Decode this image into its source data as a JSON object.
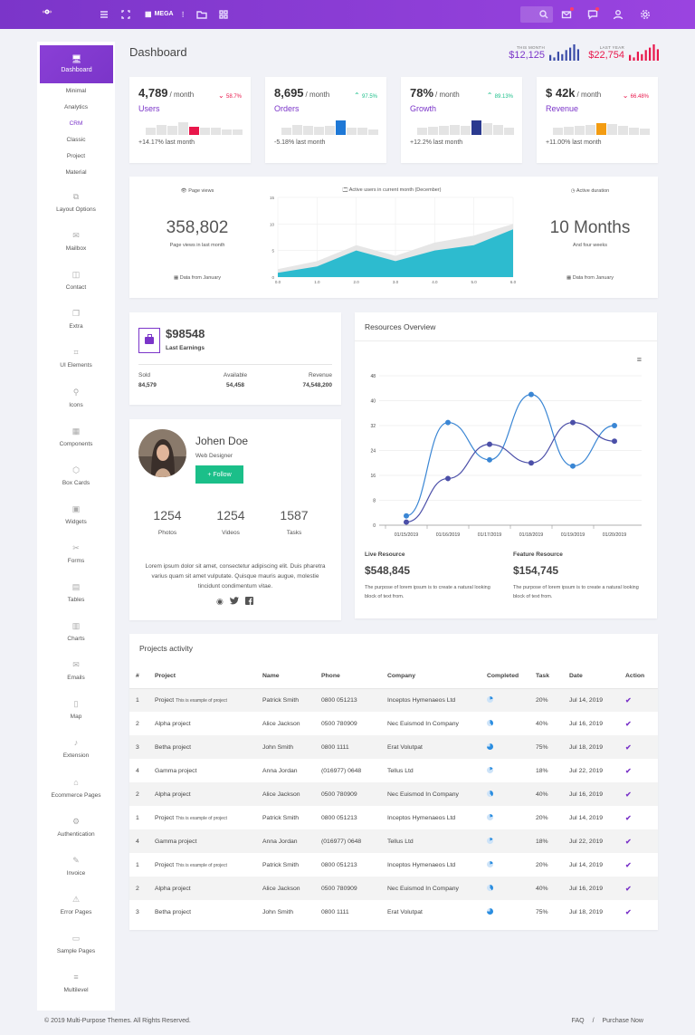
{
  "topbar": {
    "mega_label": "MEGA",
    "icons": [
      "menu-icon",
      "expand-icon",
      "grid-icon",
      "folder-icon",
      "apps-icon",
      "search-icon",
      "mail-icon",
      "chat-icon",
      "user-icon",
      "gear-icon"
    ]
  },
  "sidebar": {
    "active": {
      "label": "Dashboard",
      "icon": "monitor-icon"
    },
    "submenu": [
      "Minimal",
      "Analytics",
      "CRM",
      "Classic",
      "Project",
      "Material"
    ],
    "items": [
      {
        "label": "Layout Options",
        "icon": "layout-icon"
      },
      {
        "label": "Mailbox",
        "icon": "mailbox-icon"
      },
      {
        "label": "Contact",
        "icon": "contact-icon"
      },
      {
        "label": "Extra",
        "icon": "copy-icon"
      },
      {
        "label": "UI Elements",
        "icon": "crop-icon"
      },
      {
        "label": "Icons",
        "icon": "pin-icon"
      },
      {
        "label": "Components",
        "icon": "components-icon"
      },
      {
        "label": "Box Cards",
        "icon": "box-icon"
      },
      {
        "label": "Widgets",
        "icon": "image-icon"
      },
      {
        "label": "Forms",
        "icon": "tools-icon"
      },
      {
        "label": "Tables",
        "icon": "table-icon"
      },
      {
        "label": "Charts",
        "icon": "chart-icon"
      },
      {
        "label": "Emails",
        "icon": "envelope-icon"
      },
      {
        "label": "Map",
        "icon": "map-icon"
      },
      {
        "label": "Extension",
        "icon": "plug-icon"
      },
      {
        "label": "Ecommerce Pages",
        "icon": "basket-icon"
      },
      {
        "label": "Authentication",
        "icon": "gear-small-icon"
      },
      {
        "label": "Invoice",
        "icon": "pen-icon"
      },
      {
        "label": "Error Pages",
        "icon": "warning-icon"
      },
      {
        "label": "Sample Pages",
        "icon": "laptop-icon"
      },
      {
        "label": "Multilevel",
        "icon": "list-icon"
      }
    ]
  },
  "header": {
    "title": "Dashboard",
    "this_month": {
      "label": "THIS MONTH",
      "value": "$12,125"
    },
    "last_year": {
      "label": "LAST YEAR",
      "value": "$22,754"
    }
  },
  "stats": [
    {
      "value": "4,789",
      "unit": "/ month",
      "pct": "58.7%",
      "dir": "down",
      "name": "Users",
      "footer": "+14.17% last month",
      "accent": "#e8174b",
      "bars": [
        0.5,
        0.7,
        0.6,
        0.9,
        0.55,
        0.5,
        0.5,
        0.4,
        0.4
      ],
      "hi": 4
    },
    {
      "value": "8,695",
      "unit": "/ month",
      "pct": "97.5%",
      "dir": "up",
      "name": "Orders",
      "footer": "-5.18% last month",
      "accent": "#1e78d6",
      "bars": [
        0.5,
        0.7,
        0.6,
        0.55,
        0.6,
        1.0,
        0.5,
        0.5,
        0.4
      ],
      "hi": 5
    },
    {
      "value": "78%",
      "unit": "/ month",
      "pct": "89.13%",
      "dir": "up",
      "name": "Growth",
      "footer": "+12.2% last month",
      "accent": "#2b3a8f",
      "bars": [
        0.5,
        0.55,
        0.6,
        0.7,
        0.6,
        1.0,
        0.8,
        0.7,
        0.5
      ],
      "hi": 5
    },
    {
      "value": "$ 42k",
      "unit": "/ month",
      "pct": "66.48%",
      "dir": "down",
      "name": "Revenue",
      "footer": "+11.00% last month",
      "accent": "#f39c12",
      "bars": [
        0.5,
        0.55,
        0.6,
        0.7,
        0.8,
        0.75,
        0.6,
        0.5,
        0.45
      ],
      "hi": 4
    }
  ],
  "visits": {
    "left_caption": "Page views",
    "left_value": "358,802",
    "left_sub": "Page views in last month",
    "left_foot": "Data from January",
    "center_caption": "Active users in current month (December)",
    "right_caption": "Active duration",
    "right_value": "10 Months",
    "right_sub": "And four weeks",
    "right_foot": "Data from January"
  },
  "earnings": {
    "amount": "$98548",
    "label": "Last Earnings",
    "cols": [
      {
        "k": "Sold",
        "v": "84,579"
      },
      {
        "k": "Available",
        "v": "54,458"
      },
      {
        "k": "Revenue",
        "v": "74,548,200"
      }
    ]
  },
  "profile": {
    "name": "Johen Doe",
    "role": "Web Designer",
    "follow": "+ Follow",
    "stats": [
      {
        "v": "1254",
        "k": "Photos"
      },
      {
        "v": "1254",
        "k": "Videos"
      },
      {
        "v": "1587",
        "k": "Tasks"
      }
    ],
    "bio": "Lorem ipsum dolor sit amet, consectetur adipiscing elit. Duis pharetra varius quam sit amet vulputate. Quisque mauris augue, molestie tincidunt condimentum vitae.",
    "social": [
      "globe-icon",
      "twitter-icon",
      "facebook-icon"
    ]
  },
  "resources": {
    "title": "Resources Overview",
    "live": {
      "label": "Live Resource",
      "value": "$548,845",
      "text": "The purpose of lorem ipsum is to create a natural looking block of text from."
    },
    "feature": {
      "label": "Feature Resource",
      "value": "$154,745",
      "text": "The purpose of lorem ipsum is to create a natural looking block of text from."
    }
  },
  "chart_data": [
    {
      "type": "area",
      "x": [
        0.0,
        1.0,
        2.0,
        3.0,
        4.0,
        5.0,
        6.0
      ],
      "ylim": [
        0,
        15
      ],
      "xticks": [
        "0.0",
        "1.0",
        "2.0",
        "3.0",
        "4.0",
        "5.0",
        "6.0"
      ],
      "yticks": [
        "0",
        "5",
        "10",
        "15"
      ],
      "series": [
        {
          "values": [
            1.5,
            3,
            6,
            4,
            6.5,
            7.8,
            10
          ],
          "color": "#e6e6e6"
        },
        {
          "values": [
            0.8,
            2,
            5,
            3,
            5,
            6,
            9
          ],
          "color": "#2dbbcf"
        }
      ]
    },
    {
      "type": "line",
      "categories": [
        "01/15/2019",
        "01/16/2019",
        "01/17/2019",
        "01/18/2019",
        "01/19/2019",
        "01/20/2019"
      ],
      "ylim": [
        0,
        48
      ],
      "yticks": [
        "0",
        "8",
        "16",
        "24",
        "32",
        "40",
        "48"
      ],
      "series": [
        {
          "values": [
            3,
            33,
            21,
            42,
            19,
            32
          ],
          "color": "#3a86d4"
        },
        {
          "values": [
            1,
            15,
            26,
            20,
            33,
            27
          ],
          "color": "#4b4fa8"
        }
      ]
    }
  ],
  "projects": {
    "title": "Projects activity",
    "headers": [
      "#",
      "Project",
      "Name",
      "Phone",
      "Company",
      "Completed",
      "Task",
      "Date",
      "Action"
    ],
    "rows": [
      {
        "n": "1",
        "p": "Project",
        "sub": "This is example of project",
        "name": "Patrick Smith",
        "phone": "0800 051213",
        "co": "Inceptos Hymenaeos Ltd",
        "task": "20%",
        "date": "Jul 14, 2019"
      },
      {
        "n": "2",
        "p": "Alpha project",
        "sub": "",
        "name": "Alice Jackson",
        "phone": "0500 780909",
        "co": "Nec Euismod In Company",
        "task": "40%",
        "date": "Jul 16, 2019"
      },
      {
        "n": "3",
        "p": "Betha project",
        "sub": "",
        "name": "John Smith",
        "phone": "0800 1111",
        "co": "Erat Volutpat",
        "task": "75%",
        "date": "Jul 18, 2019"
      },
      {
        "n": "4",
        "p": "Gamma project",
        "sub": "",
        "name": "Anna Jordan",
        "phone": "(016977) 0648",
        "co": "Tellus Ltd",
        "task": "18%",
        "date": "Jul 22, 2019"
      },
      {
        "n": "2",
        "p": "Alpha project",
        "sub": "",
        "name": "Alice Jackson",
        "phone": "0500 780909",
        "co": "Nec Euismod In Company",
        "task": "40%",
        "date": "Jul 16, 2019"
      },
      {
        "n": "1",
        "p": "Project",
        "sub": "This is example of project",
        "name": "Patrick Smith",
        "phone": "0800 051213",
        "co": "Inceptos Hymenaeos Ltd",
        "task": "20%",
        "date": "Jul 14, 2019"
      },
      {
        "n": "4",
        "p": "Gamma project",
        "sub": "",
        "name": "Anna Jordan",
        "phone": "(016977) 0648",
        "co": "Tellus Ltd",
        "task": "18%",
        "date": "Jul 22, 2019"
      },
      {
        "n": "1",
        "p": "Project",
        "sub": "This is example of project",
        "name": "Patrick Smith",
        "phone": "0800 051213",
        "co": "Inceptos Hymenaeos Ltd",
        "task": "20%",
        "date": "Jul 14, 2019"
      },
      {
        "n": "2",
        "p": "Alpha project",
        "sub": "",
        "name": "Alice Jackson",
        "phone": "0500 780909",
        "co": "Nec Euismod In Company",
        "task": "40%",
        "date": "Jul 16, 2019"
      },
      {
        "n": "3",
        "p": "Betha project",
        "sub": "",
        "name": "John Smith",
        "phone": "0800 1111",
        "co": "Erat Volutpat",
        "task": "75%",
        "date": "Jul 18, 2019"
      }
    ]
  },
  "footer": {
    "copyright": "© 2019 Multi-Purpose Themes. All Rights Reserved.",
    "faq": "FAQ",
    "sep": "/",
    "purchase": "Purchase Now"
  }
}
